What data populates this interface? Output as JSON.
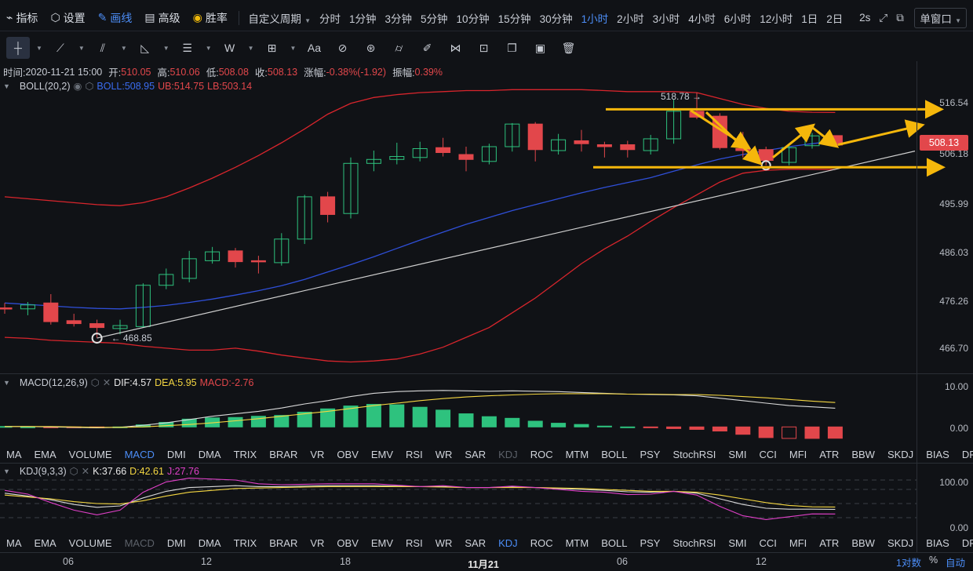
{
  "topbar": {
    "indicators": "指标",
    "settings": "设置",
    "draw": "画线",
    "advanced": "高级",
    "winrate": "胜率",
    "custom_period": "自定义周期",
    "periods": [
      "分时",
      "1分钟",
      "3分钟",
      "5分钟",
      "10分钟",
      "15分钟",
      "30分钟",
      "1小时",
      "2小时",
      "3小时",
      "4小时",
      "6小时",
      "12小时",
      "1日",
      "2日"
    ],
    "active_period": "1小时",
    "interval": "2s",
    "window_mode": "单窗口"
  },
  "toolbar": {
    "text_tool": "Aa",
    "wave_tool": "W"
  },
  "ohlc": {
    "time_label": "时间:",
    "time": "2020-11-21 15:00",
    "open_label": "开:",
    "open": "510.05",
    "high_label": "高:",
    "high": "510.06",
    "low_label": "低:",
    "low": "508.08",
    "close_label": "收:",
    "close": "508.13",
    "change_label": "涨幅:",
    "change": "-0.38%(-1.92)",
    "amp_label": "振幅:",
    "amp": "0.39%"
  },
  "boll": {
    "name": "BOLL(20,2)",
    "mid": "BOLL:508.95",
    "ub": "UB:514.75",
    "lb": "LB:503.14",
    "price_tag": "508.13",
    "annot_high": "518.78",
    "annot_low": "468.85"
  },
  "price_axis": [
    "516.54",
    "506.18",
    "495.99",
    "486.03",
    "476.26",
    "466.70"
  ],
  "macd": {
    "name": "MACD(12,26,9)",
    "dif": "DIF:4.57",
    "dea": "DEA:5.95",
    "macd": "MACD:-2.76",
    "axis": [
      "10.00",
      "0.00"
    ]
  },
  "kdj": {
    "name": "KDJ(9,3,3)",
    "k": "K:37.66",
    "d": "D:42.61",
    "j": "J:27.76",
    "axis": [
      "100.00",
      "0.00"
    ]
  },
  "indicator_tabs": [
    "MA",
    "EMA",
    "VOLUME",
    "MACD",
    "DMI",
    "DMA",
    "TRIX",
    "BRAR",
    "VR",
    "OBV",
    "EMV",
    "RSI",
    "WR",
    "SAR",
    "KDJ",
    "ROC",
    "MTM",
    "BOLL",
    "PSY",
    "StochRSI",
    "SMI",
    "CCI",
    "MFI",
    "ATR",
    "BBW",
    "SKDJ",
    "BIAS",
    "DPO",
    "AO"
  ],
  "time_axis": [
    "06",
    "12",
    "18",
    "11月21",
    "06",
    "12"
  ],
  "bottom": {
    "log": "1对数",
    "pct": "%",
    "auto": "自动"
  },
  "chart_data": {
    "type": "candlestick",
    "ylim": [
      462,
      522
    ],
    "candles": [
      {
        "o": 475.0,
        "h": 476.0,
        "l": 473.8,
        "c": 474.8
      },
      {
        "o": 474.8,
        "h": 476.2,
        "l": 473.5,
        "c": 475.6
      },
      {
        "o": 476.0,
        "h": 477.8,
        "l": 471.6,
        "c": 472.2
      },
      {
        "o": 472.4,
        "h": 473.8,
        "l": 471.2,
        "c": 471.8
      },
      {
        "o": 471.8,
        "h": 472.6,
        "l": 468.9,
        "c": 471.0
      },
      {
        "o": 470.8,
        "h": 472.6,
        "l": 469.6,
        "c": 471.4
      },
      {
        "o": 471.2,
        "h": 480.0,
        "l": 471.0,
        "c": 479.6
      },
      {
        "o": 479.6,
        "h": 483.0,
        "l": 478.8,
        "c": 481.8
      },
      {
        "o": 481.0,
        "h": 486.6,
        "l": 480.2,
        "c": 485.0
      },
      {
        "o": 484.6,
        "h": 487.4,
        "l": 484.0,
        "c": 486.4
      },
      {
        "o": 486.6,
        "h": 487.2,
        "l": 483.2,
        "c": 484.4
      },
      {
        "o": 484.6,
        "h": 485.6,
        "l": 482.0,
        "c": 484.4
      },
      {
        "o": 484.2,
        "h": 490.2,
        "l": 483.6,
        "c": 489.0
      },
      {
        "o": 489.0,
        "h": 498.0,
        "l": 488.0,
        "c": 497.6
      },
      {
        "o": 497.6,
        "h": 498.6,
        "l": 492.4,
        "c": 494.0
      },
      {
        "o": 494.2,
        "h": 505.6,
        "l": 493.2,
        "c": 504.4
      },
      {
        "o": 504.4,
        "h": 507.0,
        "l": 502.8,
        "c": 505.2
      },
      {
        "o": 505.2,
        "h": 508.6,
        "l": 504.2,
        "c": 505.8
      },
      {
        "o": 505.6,
        "h": 508.8,
        "l": 504.8,
        "c": 507.4
      },
      {
        "o": 507.6,
        "h": 509.6,
        "l": 505.8,
        "c": 506.6
      },
      {
        "o": 506.2,
        "h": 507.8,
        "l": 502.8,
        "c": 505.2
      },
      {
        "o": 504.8,
        "h": 508.4,
        "l": 504.2,
        "c": 507.8
      },
      {
        "o": 507.8,
        "h": 512.6,
        "l": 506.8,
        "c": 512.4
      },
      {
        "o": 512.4,
        "h": 512.8,
        "l": 504.8,
        "c": 507.2
      },
      {
        "o": 507.0,
        "h": 510.4,
        "l": 506.2,
        "c": 509.2
      },
      {
        "o": 509.0,
        "h": 511.2,
        "l": 506.8,
        "c": 508.4
      },
      {
        "o": 508.2,
        "h": 508.8,
        "l": 505.6,
        "c": 507.8
      },
      {
        "o": 508.2,
        "h": 509.0,
        "l": 505.6,
        "c": 507.2
      },
      {
        "o": 507.0,
        "h": 510.2,
        "l": 506.2,
        "c": 509.4
      },
      {
        "o": 509.4,
        "h": 517.4,
        "l": 508.4,
        "c": 515.0
      },
      {
        "o": 515.0,
        "h": 518.8,
        "l": 513.4,
        "c": 513.8
      },
      {
        "o": 514.0,
        "h": 514.6,
        "l": 507.2,
        "c": 507.6
      },
      {
        "o": 507.4,
        "h": 510.8,
        "l": 505.6,
        "c": 507.0
      },
      {
        "o": 507.2,
        "h": 507.8,
        "l": 504.0,
        "c": 505.0
      },
      {
        "o": 504.6,
        "h": 508.4,
        "l": 504.0,
        "c": 507.6
      },
      {
        "o": 508.0,
        "h": 510.6,
        "l": 507.4,
        "c": 510.0
      },
      {
        "o": 510.05,
        "h": 510.06,
        "l": 508.08,
        "c": 508.13
      }
    ],
    "boll_ub": [
      497.6,
      497.2,
      496.8,
      496.4,
      496.0,
      495.8,
      496.4,
      497.6,
      499.4,
      501.4,
      503.6,
      506.0,
      508.6,
      511.4,
      514.4,
      516.6,
      517.8,
      518.4,
      518.8,
      519.0,
      519.2,
      519.2,
      519.4,
      519.4,
      519.4,
      519.4,
      519.2,
      519.0,
      519.0,
      519.0,
      518.8,
      517.6,
      516.4,
      515.6,
      515.0,
      514.8,
      514.75
    ],
    "boll_mid": [
      476.0,
      475.7,
      475.4,
      475.1,
      474.9,
      474.8,
      475.1,
      475.5,
      476.1,
      476.8,
      477.6,
      478.5,
      479.5,
      480.8,
      482.3,
      483.8,
      485.4,
      487.1,
      488.8,
      490.4,
      492.0,
      493.4,
      494.8,
      496.0,
      497.2,
      498.4,
      499.5,
      500.5,
      501.5,
      502.8,
      504.1,
      505.3,
      506.2,
      507.0,
      507.8,
      508.4,
      508.95
    ],
    "boll_lb": [
      469.0,
      468.8,
      468.4,
      468.2,
      468.0,
      467.8,
      467.2,
      466.8,
      466.4,
      466.4,
      466.8,
      466.2,
      465.4,
      464.8,
      464.2,
      464.0,
      464.2,
      464.6,
      465.6,
      467.0,
      469.0,
      471.0,
      474.0,
      477.0,
      480.5,
      484.0,
      487.0,
      489.6,
      492.6,
      495.4,
      498.0,
      500.6,
      502.4,
      503.0,
      503.2,
      503.2,
      503.14
    ],
    "macd": {
      "dif": [
        0.1,
        0.1,
        0.0,
        -0.1,
        -0.2,
        -0.1,
        0.4,
        1.0,
        1.8,
        2.6,
        3.2,
        3.8,
        4.6,
        5.6,
        6.4,
        7.4,
        8.2,
        8.6,
        8.8,
        8.9,
        8.8,
        8.7,
        8.8,
        8.7,
        8.6,
        8.4,
        8.2,
        8.0,
        7.9,
        7.8,
        7.6,
        7.0,
        6.4,
        5.8,
        5.2,
        4.9,
        4.57
      ],
      "dea": [
        0.1,
        0.1,
        0.1,
        0.0,
        -0.1,
        -0.1,
        0.0,
        0.3,
        0.6,
        1.0,
        1.5,
        2.0,
        2.6,
        3.2,
        3.8,
        4.5,
        5.2,
        5.8,
        6.4,
        6.9,
        7.3,
        7.6,
        7.8,
        8.0,
        8.1,
        8.1,
        8.1,
        8.0,
        8.0,
        7.9,
        7.9,
        7.7,
        7.4,
        7.1,
        6.7,
        6.3,
        5.95
      ],
      "hist": [
        0.1,
        0.0,
        -0.1,
        -0.1,
        -0.2,
        0.0,
        0.5,
        1.1,
        1.9,
        2.2,
        2.3,
        2.6,
        2.8,
        3.6,
        4.4,
        5.1,
        5.5,
        5.4,
        4.8,
        4.1,
        3.2,
        2.5,
        2.1,
        1.4,
        0.9,
        0.6,
        0.2,
        0.0,
        -0.2,
        -0.4,
        -0.6,
        -1.0,
        -1.8,
        -2.6,
        -2.8,
        -2.8,
        -2.76
      ]
    },
    "kdj": {
      "k": [
        72,
        66,
        58,
        48,
        42,
        45,
        62,
        76,
        84,
        86,
        88,
        86,
        86,
        87,
        88,
        88,
        88,
        87,
        86,
        86,
        84,
        84,
        85,
        84,
        82,
        80,
        78,
        75,
        74,
        76,
        72,
        60,
        48,
        40,
        38,
        38,
        37.66
      ],
      "d": [
        68,
        64,
        60,
        54,
        50,
        49,
        56,
        66,
        74,
        78,
        82,
        83,
        84,
        85,
        86,
        86,
        86,
        86,
        86,
        85,
        84,
        84,
        84,
        84,
        83,
        82,
        80,
        78,
        76,
        76,
        74,
        68,
        60,
        52,
        46,
        43,
        42.61
      ],
      "j": [
        78,
        70,
        52,
        36,
        26,
        36,
        74,
        96,
        104,
        102,
        100,
        92,
        90,
        91,
        92,
        92,
        92,
        89,
        86,
        88,
        84,
        84,
        87,
        84,
        80,
        76,
        74,
        69,
        70,
        76,
        68,
        44,
        24,
        16,
        22,
        28,
        27.76
      ]
    }
  }
}
